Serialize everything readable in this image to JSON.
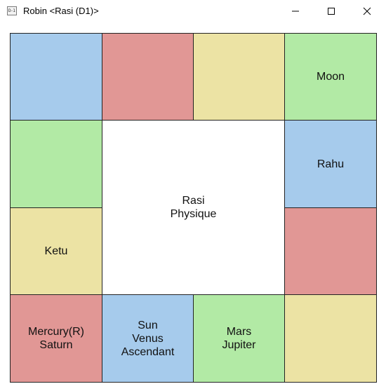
{
  "window": {
    "title": "Robin <Rasi (D1)>",
    "icon_label": "D-1",
    "controls": {
      "minimize_icon": "minimize-icon",
      "maximize_icon": "maximize-icon",
      "close_icon": "close-icon"
    }
  },
  "chart": {
    "center": {
      "line1": "Rasi",
      "line2": "Physique"
    },
    "houses": {
      "top_1": "",
      "top_2": "",
      "top_3": "",
      "top_4": "Moon",
      "right_1": "Rahu",
      "right_2": "",
      "bottom_4": "",
      "bottom_3": "Mars\nJupiter",
      "bottom_2": "Sun\nVenus\nAscendant",
      "bottom_1": "Mercury(R)\nSaturn",
      "left_2": "Ketu",
      "left_1": ""
    },
    "colors": {
      "blue": "#a6cbec",
      "red": "#e19795",
      "yellow": "#ece3a4",
      "green": "#b2eaa5"
    }
  }
}
